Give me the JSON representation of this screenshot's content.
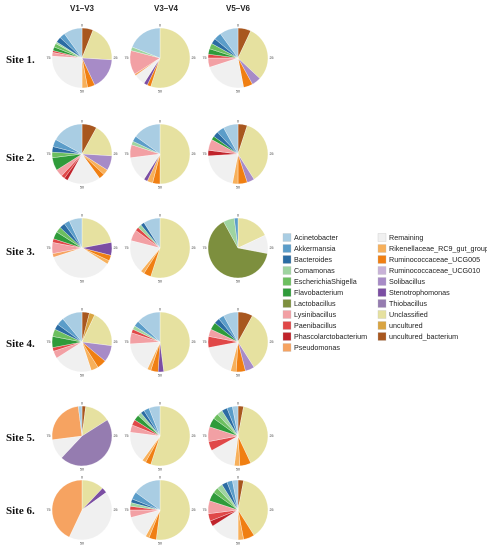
{
  "chart_data": {
    "type": "pie",
    "columns": [
      "V1–V3",
      "V3–V4",
      "V5–V6"
    ],
    "rows": [
      "Site 1.",
      "Site 2.",
      "Site 3.",
      "Site 4.",
      "Site 5.",
      "Site 6."
    ],
    "ticks": [
      "0",
      "25",
      "50",
      "75"
    ],
    "legend": [
      {
        "name": "Acinetobacter",
        "color": "#a9cde3"
      },
      {
        "name": "Akkermansia",
        "color": "#5b9dc9"
      },
      {
        "name": "Bacteroides",
        "color": "#2b6ca3"
      },
      {
        "name": "Comamonas",
        "color": "#9fd4a0"
      },
      {
        "name": "EscherichiaShigella",
        "color": "#6cbf5f"
      },
      {
        "name": "Flavobacterium",
        "color": "#2f9b3a"
      },
      {
        "name": "Lactobacillus",
        "color": "#7d8f3e"
      },
      {
        "name": "Lysinibacillus",
        "color": "#f2a0a4"
      },
      {
        "name": "Paenibacillus",
        "color": "#e04848"
      },
      {
        "name": "Phascolarctobacterium",
        "color": "#c0232b"
      },
      {
        "name": "Pseudomonas",
        "color": "#f6a361"
      },
      {
        "name": "Remaining",
        "color": "#f0f0f0"
      },
      {
        "name": "Rikenellaceae_RC9_gut_group",
        "color": "#f7b05b"
      },
      {
        "name": "Ruminococcaceae_UCG005",
        "color": "#f07f12"
      },
      {
        "name": "Ruminococcaceae_UCG010",
        "color": "#c8b2d8"
      },
      {
        "name": "Solibacillus",
        "color": "#a78bc7"
      },
      {
        "name": "Stenotrophomonas",
        "color": "#7b4ea3"
      },
      {
        "name": "Thiobacillus",
        "color": "#957cb0"
      },
      {
        "name": "Unclassified",
        "color": "#e6e1a0"
      },
      {
        "name": "uncultured",
        "color": "#d9a441"
      },
      {
        "name": "uncultured_bacterium",
        "color": "#a8571f"
      }
    ],
    "pies": [
      [
        [
          [
            "uncultured_bacterium",
            6
          ],
          [
            "Unclassified",
            20
          ],
          [
            "Solibacillus",
            17
          ],
          [
            "Ruminococcaceae_UCG005",
            4
          ],
          [
            "Rikenellaceae_RC9_gut_group",
            3
          ],
          [
            "Remaining",
            26
          ],
          [
            "Lysinibacillus",
            2
          ],
          [
            "Paenibacillus",
            1
          ],
          [
            "Flavobacterium",
            2
          ],
          [
            "EscherichiaShigella",
            2
          ],
          [
            "Comamonas",
            1
          ],
          [
            "Bacteroides",
            3
          ],
          [
            "Akkermansia",
            3
          ],
          [
            "Acinetobacter",
            10
          ]
        ],
        [
          [
            "Unclassified",
            55
          ],
          [
            "Ruminococcaceae_UCG005",
            2
          ],
          [
            "Stenotrophomonas",
            2
          ],
          [
            "Remaining",
            6
          ],
          [
            "Pseudomonas",
            1
          ],
          [
            "Lysinibacillus",
            13
          ],
          [
            "Comamonas",
            2
          ],
          [
            "Acinetobacter",
            19
          ]
        ],
        [
          [
            "uncultured_bacterium",
            7
          ],
          [
            "Unclassified",
            30
          ],
          [
            "Solibacillus",
            5
          ],
          [
            "Ruminococcaceae_UCG005",
            5
          ],
          [
            "Remaining",
            23
          ],
          [
            "Lysinibacillus",
            5
          ],
          [
            "Paenibacillus",
            2
          ],
          [
            "Flavobacterium",
            3
          ],
          [
            "EscherichiaShigella",
            3
          ],
          [
            "Bacteroides",
            3
          ],
          [
            "Akkermansia",
            4
          ],
          [
            "Acinetobacter",
            10
          ]
        ]
      ],
      [
        [
          [
            "uncultured_bacterium",
            8
          ],
          [
            "Unclassified",
            18
          ],
          [
            "Solibacillus",
            8
          ],
          [
            "Rikenellaceae_RC9_gut_group",
            3
          ],
          [
            "Ruminococcaceae_UCG005",
            3
          ],
          [
            "Remaining",
            18
          ],
          [
            "Phascolarctobacterium",
            2
          ],
          [
            "Paenibacillus",
            2
          ],
          [
            "Lysinibacillus",
            4
          ],
          [
            "Flavobacterium",
            7
          ],
          [
            "EscherichiaShigella",
            3
          ],
          [
            "Bacteroides",
            3
          ],
          [
            "Akkermansia",
            4
          ],
          [
            "Acinetobacter",
            17
          ]
        ],
        [
          [
            "Unclassified",
            50
          ],
          [
            "Ruminococcaceae_UCG005",
            4
          ],
          [
            "Rikenellaceae_RC9_gut_group",
            3
          ],
          [
            "Stenotrophomonas",
            2
          ],
          [
            "Remaining",
            14
          ],
          [
            "Lysinibacillus",
            7
          ],
          [
            "Comamonas",
            2
          ],
          [
            "Akkermansia",
            3
          ],
          [
            "Acinetobacter",
            15
          ]
        ],
        [
          [
            "uncultured_bacterium",
            5
          ],
          [
            "Unclassified",
            36
          ],
          [
            "Solibacillus",
            4
          ],
          [
            "Ruminococcaceae_UCG005",
            5
          ],
          [
            "Rikenellaceae_RC9_gut_group",
            3
          ],
          [
            "Remaining",
            21
          ],
          [
            "Phascolarctobacterium",
            3
          ],
          [
            "Lysinibacillus",
            6
          ],
          [
            "Flavobacterium",
            2
          ],
          [
            "Bacteroides",
            3
          ],
          [
            "Akkermansia",
            4
          ],
          [
            "Acinetobacter",
            8
          ]
        ]
      ],
      [
        [
          [
            "Unclassified",
            22
          ],
          [
            "Stenotrophomonas",
            7
          ],
          [
            "Ruminococcaceae_UCG005",
            3
          ],
          [
            "Rikenellaceae_RC9_gut_group",
            2
          ],
          [
            "Remaining",
            36
          ],
          [
            "Pseudomonas",
            2
          ],
          [
            "Lysinibacillus",
            6
          ],
          [
            "Paenibacillus",
            2
          ],
          [
            "Flavobacterium",
            4
          ],
          [
            "EscherichiaShigella",
            3
          ],
          [
            "Bacteroides",
            3
          ],
          [
            "Akkermansia",
            3
          ],
          [
            "Acinetobacter",
            7
          ]
        ],
        [
          [
            "Unclassified",
            55
          ],
          [
            "Ruminococcaceae_UCG005",
            4
          ],
          [
            "Rikenellaceae_RC9_gut_group",
            2
          ],
          [
            "Remaining",
            18
          ],
          [
            "Lysinibacillus",
            6
          ],
          [
            "Paenibacillus",
            2
          ],
          [
            "Comamonas",
            2
          ],
          [
            "Bacteroides",
            2
          ],
          [
            "Acinetobacter",
            9
          ]
        ],
        [
          [
            "Unclassified",
            18
          ],
          [
            "Remaining",
            10
          ],
          [
            "Lactobacillus",
            64
          ],
          [
            "Comamonas",
            6
          ],
          [
            "Akkermansia",
            2
          ]
        ]
      ],
      [
        [
          [
            "uncultured_bacterium",
            4
          ],
          [
            "uncultured",
            3
          ],
          [
            "Unclassified",
            20
          ],
          [
            "Solibacillus",
            9
          ],
          [
            "Ruminococcaceae_UCG005",
            5
          ],
          [
            "Rikenellaceae_RC9_gut_group",
            4
          ],
          [
            "Remaining",
            21
          ],
          [
            "Lysinibacillus",
            4
          ],
          [
            "Paenibacillus",
            2
          ],
          [
            "Flavobacterium",
            6
          ],
          [
            "EscherichiaShigella",
            4
          ],
          [
            "Bacteroides",
            3
          ],
          [
            "Akkermansia",
            4
          ],
          [
            "Acinetobacter",
            11
          ]
        ],
        [
          [
            "Unclassified",
            48
          ],
          [
            "Stenotrophomonas",
            3
          ],
          [
            "Ruminococcaceae_UCG005",
            4
          ],
          [
            "Rikenellaceae_RC9_gut_group",
            2
          ],
          [
            "Remaining",
            17
          ],
          [
            "Lysinibacillus",
            6
          ],
          [
            "Paenibacillus",
            2
          ],
          [
            "Comamonas",
            2
          ],
          [
            "Akkermansia",
            3
          ],
          [
            "Acinetobacter",
            13
          ]
        ],
        [
          [
            "uncultured_bacterium",
            8
          ],
          [
            "Unclassified",
            33
          ],
          [
            "Solibacillus",
            5
          ],
          [
            "Ruminococcaceae_UCG005",
            5
          ],
          [
            "Rikenellaceae_RC9_gut_group",
            3
          ],
          [
            "Remaining",
            18
          ],
          [
            "Paenibacillus",
            6
          ],
          [
            "Lysinibacillus",
            4
          ],
          [
            "Flavobacterium",
            4
          ],
          [
            "Bacteroides",
            3
          ],
          [
            "Akkermansia",
            3
          ],
          [
            "Acinetobacter",
            8
          ]
        ]
      ],
      [
        [
          [
            "uncultured_bacterium",
            2
          ],
          [
            "Unclassified",
            14
          ],
          [
            "Thiobacillus",
            46
          ],
          [
            "Remaining",
            11
          ],
          [
            "Pseudomonas",
            25
          ],
          [
            "Acinetobacter",
            2
          ]
        ],
        [
          [
            "Unclassified",
            55
          ],
          [
            "Ruminococcaceae_UCG005",
            3
          ],
          [
            "Rikenellaceae_RC9_gut_group",
            2
          ],
          [
            "Remaining",
            17
          ],
          [
            "Lysinibacillus",
            4
          ],
          [
            "Paenibacillus",
            3
          ],
          [
            "Flavobacterium",
            3
          ],
          [
            "Comamonas",
            2
          ],
          [
            "Bacteroides",
            2
          ],
          [
            "Akkermansia",
            3
          ],
          [
            "Acinetobacter",
            6
          ]
        ],
        [
          [
            "uncultured_bacterium",
            3
          ],
          [
            "Unclassified",
            40
          ],
          [
            "Ruminococcaceae_UCG005",
            6
          ],
          [
            "Rikenellaceae_RC9_gut_group",
            3
          ],
          [
            "Remaining",
            15
          ],
          [
            "Paenibacillus",
            5
          ],
          [
            "Lysinibacillus",
            8
          ],
          [
            "Flavobacterium",
            5
          ],
          [
            "EscherichiaShigella",
            3
          ],
          [
            "Comamonas",
            3
          ],
          [
            "Bacteroides",
            3
          ],
          [
            "Akkermansia",
            3
          ],
          [
            "Acinetobacter",
            3
          ]
        ]
      ],
      [
        [
          [
            "Unclassified",
            12
          ],
          [
            "Stenotrophomonas",
            3
          ],
          [
            "Remaining",
            42
          ],
          [
            "Pseudomonas",
            43
          ]
        ],
        [
          [
            "Unclassified",
            52
          ],
          [
            "Ruminococcaceae_UCG005",
            4
          ],
          [
            "Rikenellaceae_RC9_gut_group",
            2
          ],
          [
            "Remaining",
            13
          ],
          [
            "Lysinibacillus",
            4
          ],
          [
            "Paenibacillus",
            2
          ],
          [
            "Comamonas",
            2
          ],
          [
            "Bacteroides",
            2
          ],
          [
            "Akkermansia",
            4
          ],
          [
            "Acinetobacter",
            15
          ]
        ],
        [
          [
            "uncultured_bacterium",
            3
          ],
          [
            "Unclassified",
            38
          ],
          [
            "Ruminococcaceae_UCG005",
            6
          ],
          [
            "Rikenellaceae_RC9_gut_group",
            3
          ],
          [
            "Remaining",
            16
          ],
          [
            "Phascolarctobacterium",
            3
          ],
          [
            "Paenibacillus",
            4
          ],
          [
            "Lysinibacillus",
            7
          ],
          [
            "Flavobacterium",
            5
          ],
          [
            "EscherichiaShigella",
            3
          ],
          [
            "Comamonas",
            3
          ],
          [
            "Bacteroides",
            3
          ],
          [
            "Akkermansia",
            3
          ],
          [
            "Acinetobacter",
            3
          ]
        ]
      ]
    ]
  }
}
